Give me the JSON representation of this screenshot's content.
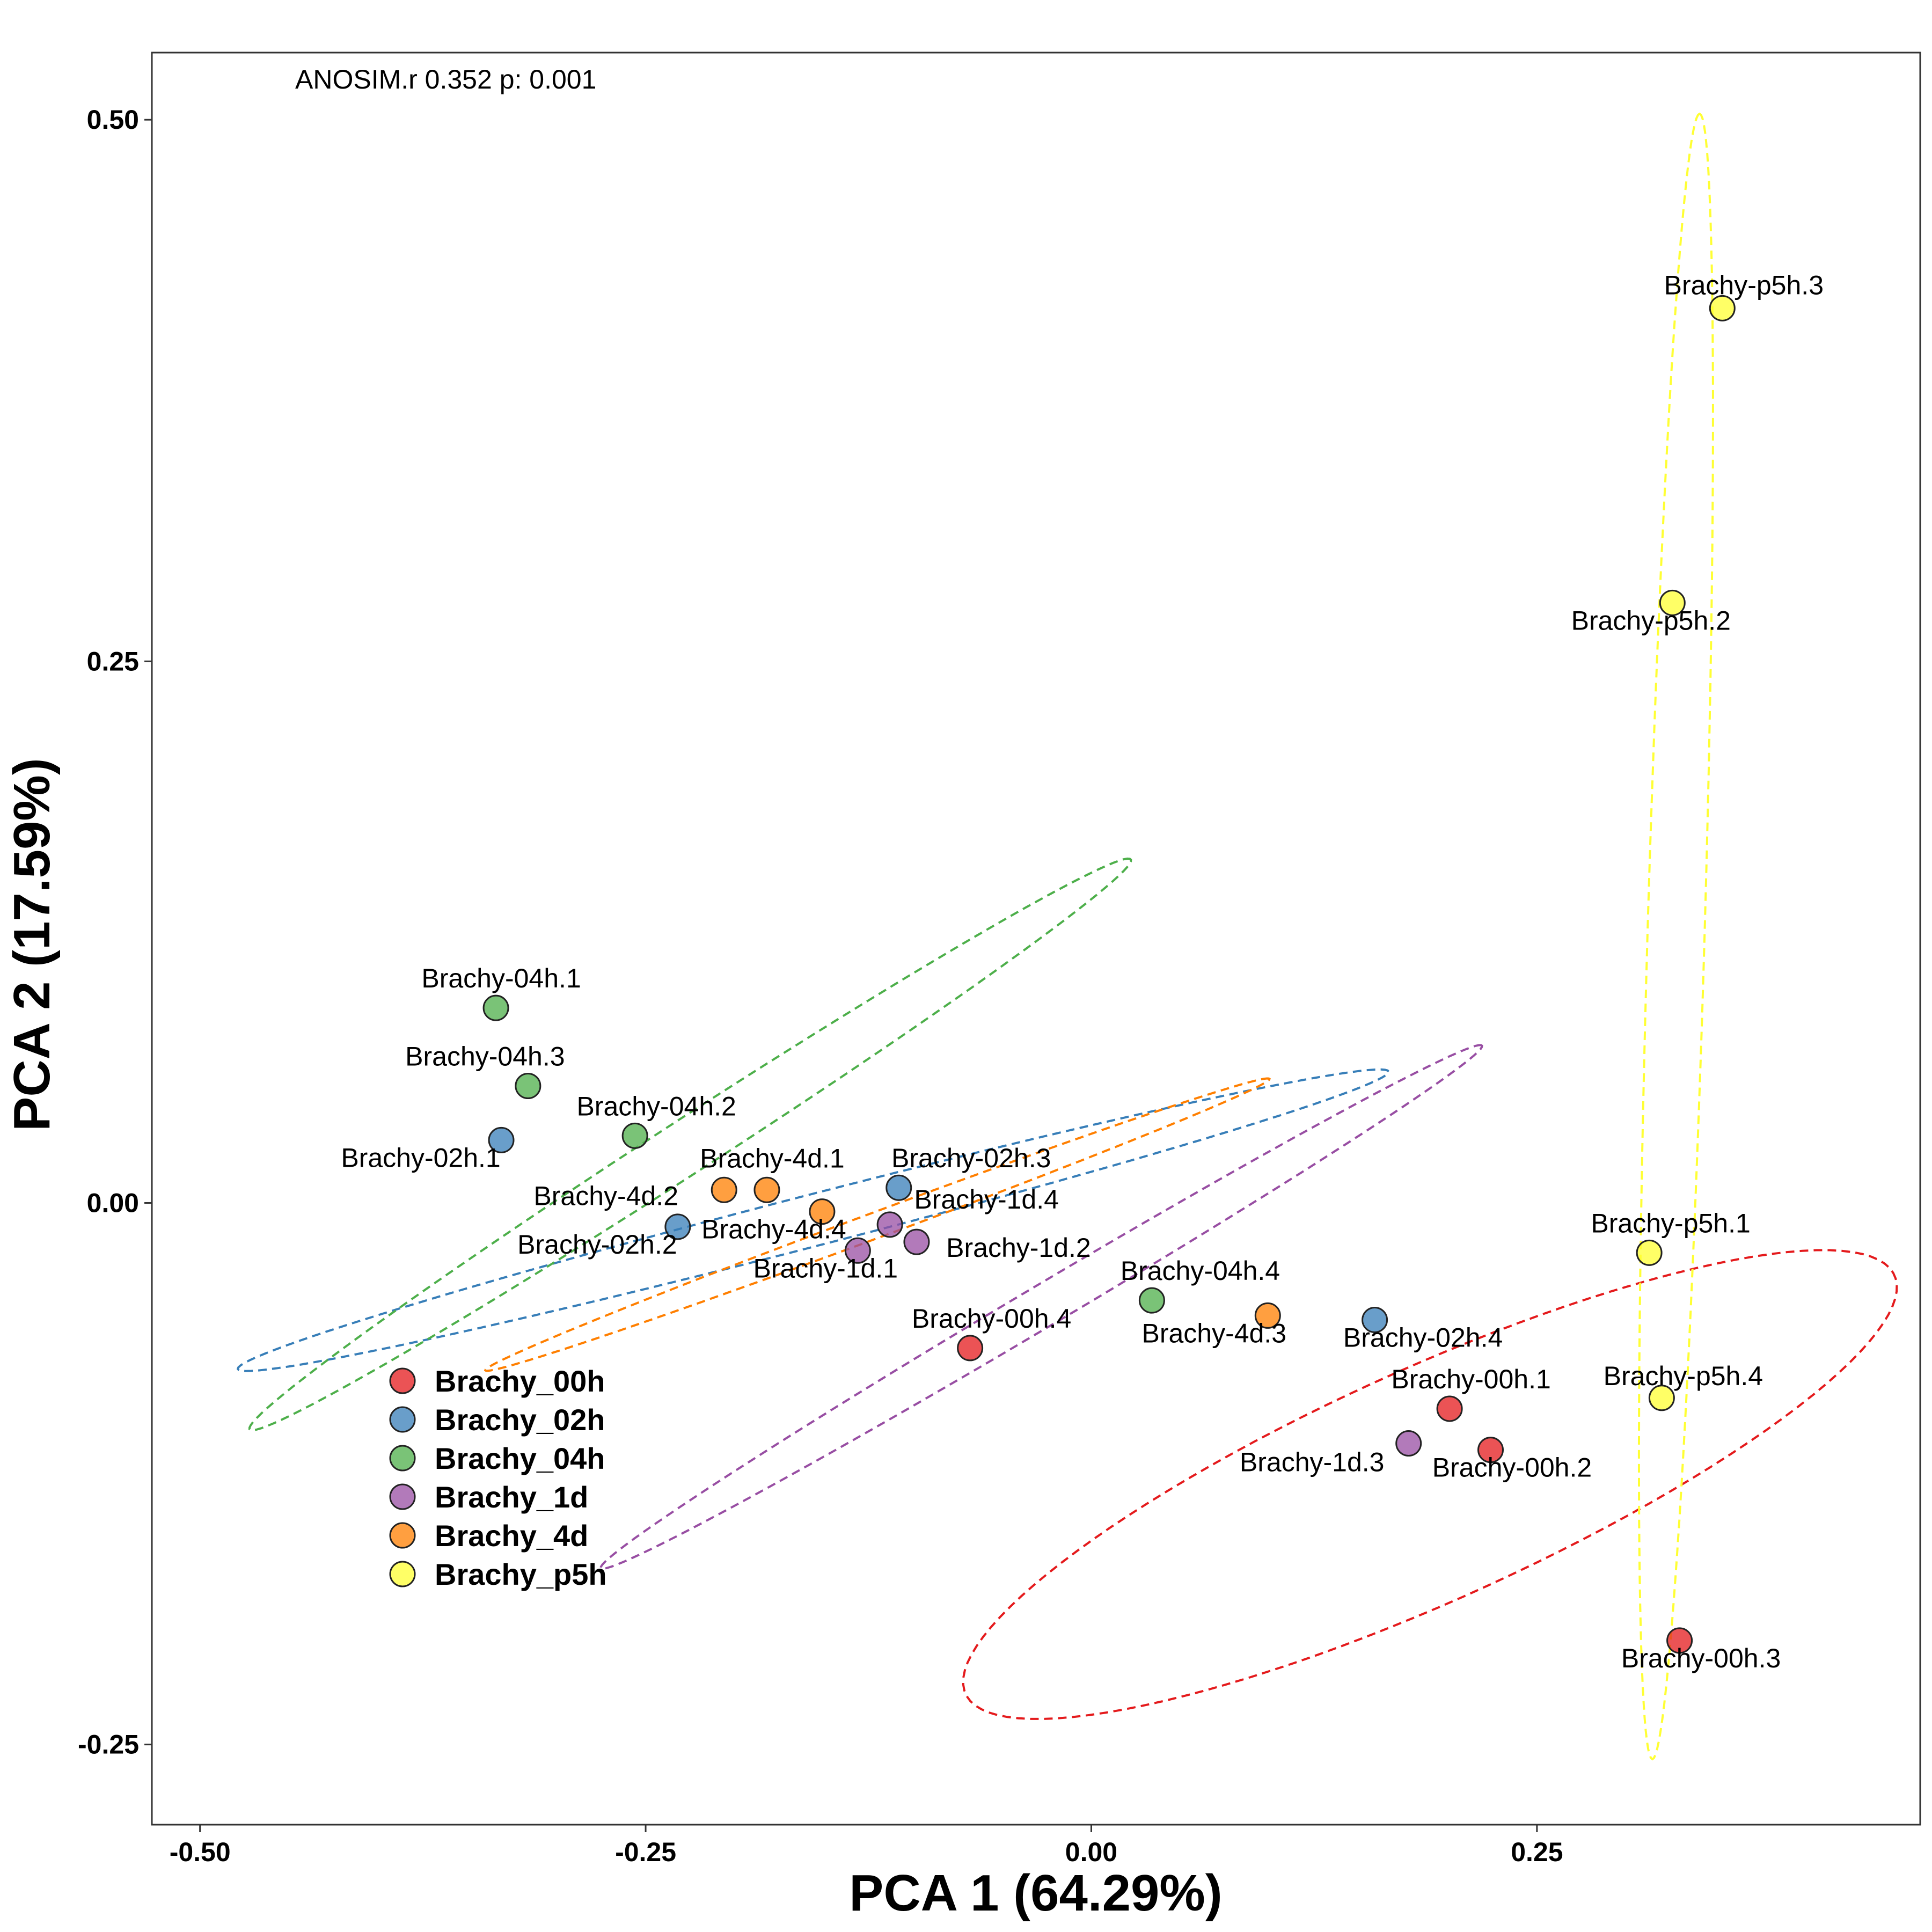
{
  "chart_data": {
    "type": "scatter",
    "title": "",
    "xlabel": "PCA 1 (64.29%)",
    "ylabel": "PCA 2 (17.59%)",
    "xlim": [
      -0.527,
      0.465
    ],
    "ylim": [
      -0.287,
      0.531
    ],
    "xticks": [
      -0.5,
      -0.25,
      0.0,
      0.25
    ],
    "xtick_labels": [
      "-0.50",
      "-0.25",
      "0.00",
      "0.25"
    ],
    "yticks": [
      -0.25,
      0.0,
      0.25,
      0.5
    ],
    "ytick_labels": [
      "-0.25",
      "0.00",
      "0.25",
      "0.50"
    ],
    "grid": false,
    "legend_position": "bottom-left inside",
    "annotation": "ANOSIM.r 0.352 p: 0.001",
    "series": [
      {
        "name": "Brachy_00h",
        "color": "#E41A1C",
        "ellipse_color": "#E41A1C",
        "points": [
          {
            "label": "Brachy-00h.1",
            "x": 0.201,
            "y": -0.095
          },
          {
            "label": "Brachy-00h.2",
            "x": 0.224,
            "y": -0.114
          },
          {
            "label": "Brachy-00h.3",
            "x": 0.33,
            "y": -0.202
          },
          {
            "label": "Brachy-00h.4",
            "x": -0.068,
            "y": -0.067
          }
        ],
        "ellipse": {
          "cx": 0.19,
          "cy": -0.13,
          "rx": 0.278,
          "ry": 0.055,
          "angle_deg": 20
        }
      },
      {
        "name": "Brachy_02h",
        "color": "#377EB8",
        "ellipse_color": "#377EB8",
        "points": [
          {
            "label": "Brachy-02h.1",
            "x": -0.331,
            "y": 0.029
          },
          {
            "label": "Brachy-02h.2",
            "x": -0.232,
            "y": -0.011
          },
          {
            "label": "Brachy-02h.3",
            "x": -0.108,
            "y": 0.007
          },
          {
            "label": "Brachy-02h.4",
            "x": 0.159,
            "y": -0.054
          }
        ],
        "ellipse": {
          "cx": -0.156,
          "cy": -0.008,
          "rx": 0.33,
          "ry": 0.012,
          "angle_deg": 12
        }
      },
      {
        "name": "Brachy_04h",
        "color": "#4DAF4A",
        "ellipse_color": "#4DAF4A",
        "points": [
          {
            "label": "Brachy-04h.1",
            "x": -0.334,
            "y": 0.09
          },
          {
            "label": "Brachy-04h.2",
            "x": -0.256,
            "y": 0.031
          },
          {
            "label": "Brachy-04h.3",
            "x": -0.316,
            "y": 0.054
          },
          {
            "label": "Brachy-04h.4",
            "x": 0.034,
            "y": -0.045
          }
        ],
        "ellipse": {
          "cx": -0.225,
          "cy": 0.027,
          "rx": 0.28,
          "ry": 0.013,
          "angle_deg": 28
        }
      },
      {
        "name": "Brachy_1d",
        "color": "#984EA3",
        "ellipse_color": "#984EA3",
        "points": [
          {
            "label": "Brachy-1d.1",
            "x": -0.131,
            "y": -0.022
          },
          {
            "label": "Brachy-1d.2",
            "x": -0.098,
            "y": -0.018
          },
          {
            "label": "Brachy-1d.3",
            "x": 0.178,
            "y": -0.111
          },
          {
            "label": "Brachy-1d.4",
            "x": -0.113,
            "y": -0.01
          }
        ],
        "ellipse": {
          "cx": -0.028,
          "cy": -0.048,
          "rx": 0.275,
          "ry": 0.01,
          "angle_deg": 26
        }
      },
      {
        "name": "Brachy_4d",
        "color": "#FF7F00",
        "ellipse_color": "#FF7F00",
        "points": [
          {
            "label": "Brachy-4d.1",
            "x": -0.182,
            "y": 0.006
          },
          {
            "label": "Brachy-4d.2",
            "x": -0.206,
            "y": 0.006
          },
          {
            "label": "Brachy-4d.3",
            "x": 0.099,
            "y": -0.052
          },
          {
            "label": "Brachy-4d.4",
            "x": -0.151,
            "y": -0.004
          }
        ],
        "ellipse": {
          "cx": -0.12,
          "cy": -0.01,
          "rx": 0.23,
          "ry": 0.006,
          "angle_deg": 17
        }
      },
      {
        "name": "Brachy_p5h",
        "color": "#FFFF33",
        "ellipse_color": "#FFFF33",
        "points": [
          {
            "label": "Brachy-p5h.1",
            "x": 0.313,
            "y": -0.023
          },
          {
            "label": "Brachy-p5h.2",
            "x": 0.326,
            "y": 0.277
          },
          {
            "label": "Brachy-p5h.3",
            "x": 0.354,
            "y": 0.413
          },
          {
            "label": "Brachy-p5h.4",
            "x": 0.32,
            "y": -0.09
          }
        ],
        "ellipse": {
          "cx": 0.328,
          "cy": 0.123,
          "rx": 0.38,
          "ry": 0.016,
          "angle_deg": 88
        }
      }
    ]
  }
}
